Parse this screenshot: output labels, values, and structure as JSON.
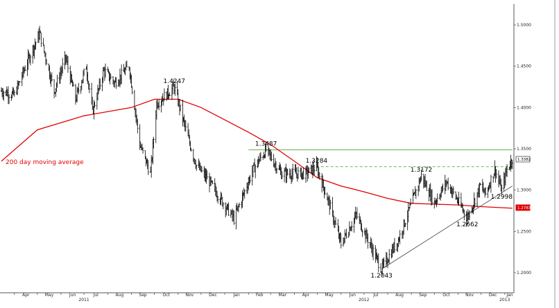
{
  "colors": {
    "price": "#000000",
    "moving_average": "#e00000",
    "resistance": "#6ab04c",
    "trendline": "#333333",
    "axis": "#555555",
    "ma_tag": "#e00000",
    "last_tag_border": "#444444"
  },
  "chart_data": {
    "type": "line",
    "title": "",
    "xlabel": "",
    "ylabel": "",
    "ylim": [
      1.18,
      1.51
    ],
    "grid": false,
    "y_ticks": [
      "1.5000",
      "1.4500",
      "1.4000",
      "1.3500",
      "1.3000",
      "1.2500",
      "1.2000"
    ],
    "y_tick_values": [
      1.5,
      1.45,
      1.4,
      1.35,
      1.3,
      1.25,
      1.2
    ],
    "x_ticks": [
      "Apr",
      "May",
      "Jun",
      "Jul",
      "Aug",
      "Sep",
      "Oct",
      "Nov",
      "Dec",
      "Jan",
      "Feb",
      "Mar",
      "Apr",
      "May",
      "Jun",
      "Jul",
      "Aug",
      "Sep",
      "Oct",
      "Nov",
      "Dec",
      "Jan"
    ],
    "x_tick_dates": [
      "2011-04-01",
      "2011-05-01",
      "2011-06-01",
      "2011-07-01",
      "2011-08-01",
      "2011-09-01",
      "2011-10-01",
      "2011-11-01",
      "2011-12-01",
      "2012-01-01",
      "2012-02-01",
      "2012-03-01",
      "2012-04-01",
      "2012-05-01",
      "2012-06-01",
      "2012-07-01",
      "2012-08-01",
      "2012-09-01",
      "2012-10-01",
      "2012-11-01",
      "2012-12-01",
      "2013-01-01"
    ],
    "year_labels": [
      {
        "label": "2011",
        "date": "2011-07-01"
      },
      {
        "label": "2012",
        "date": "2012-07-01"
      },
      {
        "label": "2013",
        "date": "2013-01-01"
      }
    ],
    "series": [
      {
        "name": "",
        "kind": "price",
        "x": [
          "2011-03-15",
          "2011-04-01",
          "2011-04-20",
          "2011-05-04",
          "2011-05-23",
          "2011-06-07",
          "2011-06-20",
          "2011-07-04",
          "2011-07-12",
          "2011-07-27",
          "2011-08-10",
          "2011-08-29",
          "2011-09-12",
          "2011-09-26",
          "2011-10-04",
          "2011-10-27",
          "2011-11-15",
          "2011-11-25",
          "2011-12-12",
          "2012-01-13",
          "2012-02-07",
          "2012-02-24",
          "2012-03-15",
          "2012-04-16",
          "2012-04-30",
          "2012-05-16",
          "2012-06-01",
          "2012-06-21",
          "2012-07-24",
          "2012-08-15",
          "2012-09-14",
          "2012-10-01",
          "2012-10-17",
          "2012-11-05",
          "2012-11-13",
          "2012-11-30",
          "2012-12-07",
          "2012-12-19",
          "2012-12-28",
          "2013-01-04",
          "2013-01-11"
        ],
        "y": [
          1.42,
          1.415,
          1.46,
          1.49,
          1.42,
          1.46,
          1.41,
          1.45,
          1.395,
          1.445,
          1.43,
          1.45,
          1.355,
          1.32,
          1.405,
          1.4247,
          1.36,
          1.33,
          1.31,
          1.265,
          1.325,
          1.3487,
          1.32,
          1.32,
          1.3284,
          1.285,
          1.235,
          1.27,
          1.2043,
          1.24,
          1.3172,
          1.285,
          1.31,
          1.28,
          1.2662,
          1.305,
          1.295,
          1.325,
          1.2998,
          1.325,
          1.3382
        ]
      },
      {
        "name": "200 day moving average",
        "kind": "moving_average",
        "x": [
          "2011-03-15",
          "2011-05-01",
          "2011-07-01",
          "2011-09-01",
          "2011-10-01",
          "2011-11-01",
          "2011-12-01",
          "2012-01-01",
          "2012-02-01",
          "2012-03-01",
          "2012-04-01",
          "2012-05-01",
          "2012-06-01",
          "2012-07-01",
          "2012-08-01",
          "2012-09-01",
          "2012-10-01",
          "2012-11-01",
          "2012-12-01",
          "2013-01-11"
        ],
        "y": [
          1.335,
          1.373,
          1.39,
          1.4,
          1.41,
          1.41,
          1.4,
          1.385,
          1.37,
          1.355,
          1.335,
          1.315,
          1.305,
          1.298,
          1.29,
          1.284,
          1.283,
          1.282,
          1.28,
          1.278
        ]
      }
    ],
    "resistance_line": {
      "y": 1.3487,
      "from": "2012-02-01",
      "to": "2013-01-11"
    },
    "dashed_line": {
      "y": 1.3284,
      "from": "2012-04-23",
      "to": "2013-01-11"
    },
    "trendline": {
      "x": [
        "2012-07-24",
        "2013-01-11"
      ],
      "y": [
        1.2043,
        1.305
      ]
    },
    "annotations": [
      {
        "text": "1.4247",
        "x": "2011-10-27",
        "y": 1.4247,
        "pos": "above"
      },
      {
        "text": "1.3487",
        "x": "2012-02-24",
        "y": 1.3487,
        "pos": "above"
      },
      {
        "text": "1.3284",
        "x": "2012-04-30",
        "y": 1.3284,
        "pos": "above"
      },
      {
        "text": "1.3172",
        "x": "2012-09-14",
        "y": 1.3172,
        "pos": "above"
      },
      {
        "text": "1.2998",
        "x": "2012-12-28",
        "y": 1.2998,
        "pos": "below"
      },
      {
        "text": "1.2662",
        "x": "2012-11-13",
        "y": 1.2662,
        "pos": "below"
      },
      {
        "text": "1.2043",
        "x": "2012-07-24",
        "y": 1.2043,
        "pos": "below"
      }
    ],
    "legend": {
      "text": "200 day moving average",
      "placement": "left, beside the moving-average line"
    },
    "last_price": "1.3382",
    "ma_last_value": "1.2783"
  }
}
